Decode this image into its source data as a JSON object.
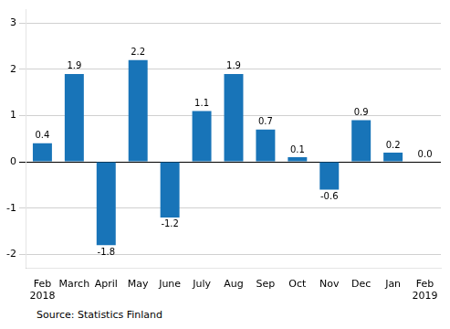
{
  "chart_data": {
    "type": "bar",
    "categories": [
      "Feb\n2018",
      "March",
      "April",
      "May",
      "June",
      "July",
      "Aug",
      "Sep",
      "Oct",
      "Nov",
      "Dec",
      "Jan",
      "Feb\n2019"
    ],
    "values": [
      0.4,
      1.9,
      -1.8,
      2.2,
      -1.2,
      1.1,
      1.9,
      0.7,
      0.1,
      -0.6,
      0.9,
      0.2,
      0.0
    ],
    "value_labels": [
      "0.4",
      "1.9",
      "-1.8",
      "2.2",
      "-1.2",
      "1.1",
      "1.9",
      "0.7",
      "0.1",
      "-0.6",
      "0.9",
      "0.2",
      "0.0"
    ],
    "color": "#1874B8",
    "ylim": [
      -2.3,
      3.3
    ],
    "yticks": [
      -2,
      -1,
      0,
      1,
      2,
      3
    ],
    "grid": true,
    "data_labels": true,
    "annotations": [
      "Source: Statistics Finland"
    ]
  }
}
